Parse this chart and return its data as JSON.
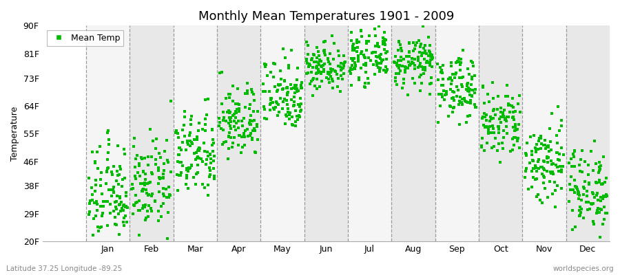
{
  "title": "Monthly Mean Temperatures 1901 - 2009",
  "ylabel": "Temperature",
  "xlabel_bottom": "Latitude 37.25 Longitude -89.25",
  "watermark": "worldspecies.org",
  "ytick_labels": [
    "20F",
    "29F",
    "38F",
    "46F",
    "55F",
    "64F",
    "73F",
    "81F",
    "90F"
  ],
  "ytick_values": [
    20,
    29,
    38,
    46,
    55,
    64,
    73,
    81,
    90
  ],
  "ylim": [
    20,
    90
  ],
  "months": [
    "Jan",
    "Feb",
    "Mar",
    "Apr",
    "May",
    "Jun",
    "Jul",
    "Aug",
    "Sep",
    "Oct",
    "Nov",
    "Dec"
  ],
  "mean_temps_F": [
    35,
    38,
    48,
    59,
    68,
    77,
    80,
    78,
    70,
    58,
    46,
    37
  ],
  "temp_spread": [
    8,
    7,
    7,
    6,
    6,
    4,
    4,
    4,
    5,
    6,
    7,
    7
  ],
  "n_years": 109,
  "dot_color": "#00bb00",
  "dot_size": 5,
  "bg_color": "#ffffff",
  "band_color_even": "#f5f5f5",
  "band_color_odd": "#e8e8e8",
  "title_fontsize": 13,
  "axis_fontsize": 9,
  "legend_fontsize": 9,
  "xlim_left": 0.0,
  "xlim_right": 13.0
}
